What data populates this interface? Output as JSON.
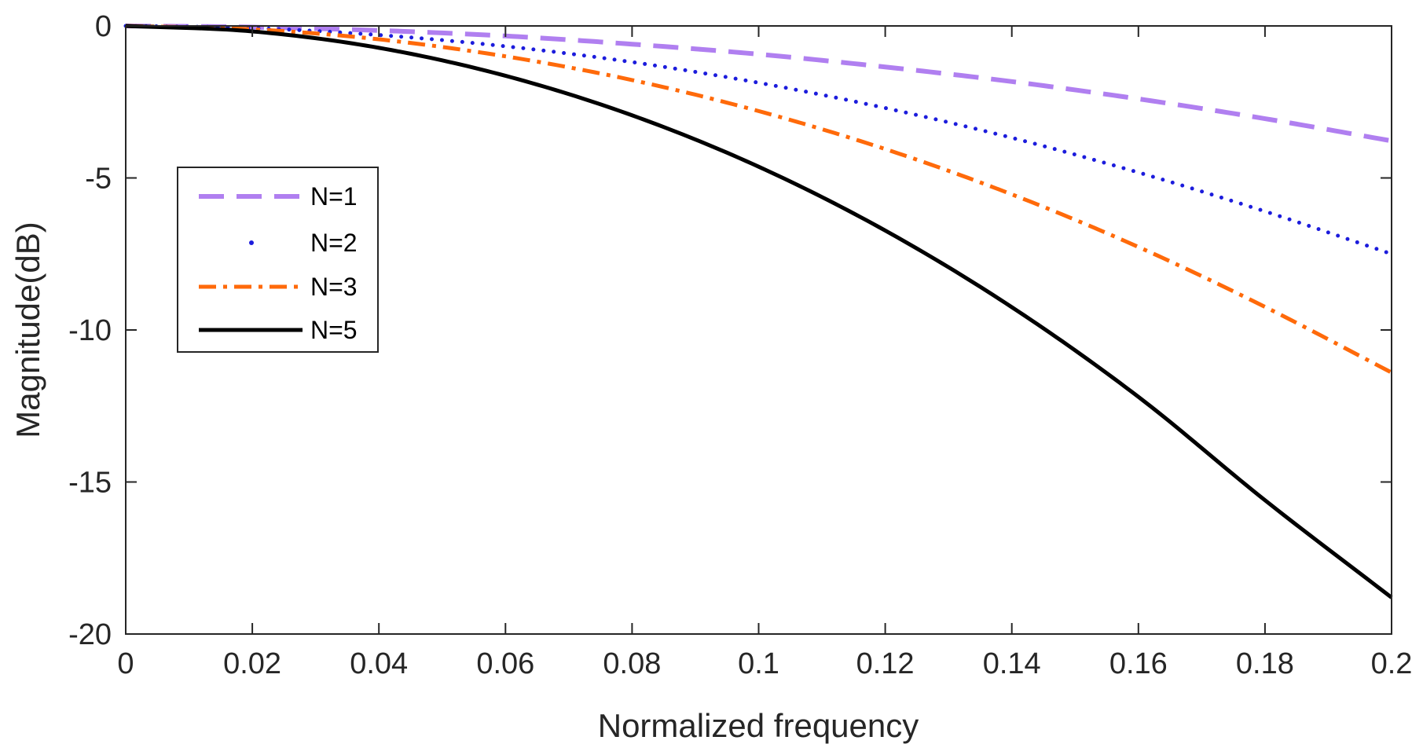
{
  "chart_data": {
    "type": "line",
    "title": "",
    "xlabel": "Normalized frequency",
    "ylabel": "Magnitude(dB)",
    "xlim": [
      0,
      0.2
    ],
    "ylim": [
      -20,
      0
    ],
    "grid": false,
    "legend_position": "middle-left",
    "x_ticks": [
      {
        "value": 0,
        "label": "0"
      },
      {
        "value": 0.02,
        "label": "0.02"
      },
      {
        "value": 0.04,
        "label": "0.04"
      },
      {
        "value": 0.06,
        "label": "0.06"
      },
      {
        "value": 0.08,
        "label": "0.08"
      },
      {
        "value": 0.1,
        "label": "0.1"
      },
      {
        "value": 0.12,
        "label": "0.12"
      },
      {
        "value": 0.14,
        "label": "0.14"
      },
      {
        "value": 0.16,
        "label": "0.16"
      },
      {
        "value": 0.18,
        "label": "0.18"
      },
      {
        "value": 0.2,
        "label": "0.2"
      }
    ],
    "y_ticks": [
      {
        "value": 0,
        "label": "0"
      },
      {
        "value": -5,
        "label": "-5"
      },
      {
        "value": -10,
        "label": "-10"
      },
      {
        "value": -15,
        "label": "-15"
      },
      {
        "value": -20,
        "label": "-20"
      }
    ],
    "x": [
      0,
      0.02,
      0.04,
      0.06,
      0.08,
      0.1,
      0.12,
      0.14,
      0.16,
      0.18,
      0.2
    ],
    "series": [
      {
        "name": "N=1",
        "color": "#b07ff0",
        "style": "dashed",
        "values": [
          0,
          -0.04,
          -0.15,
          -0.33,
          -0.6,
          -0.93,
          -1.35,
          -1.83,
          -2.4,
          -3.05,
          -3.78
        ]
      },
      {
        "name": "N=2",
        "color": "#1c1cdc",
        "style": "dotted",
        "values": [
          0,
          -0.07,
          -0.3,
          -0.67,
          -1.19,
          -1.87,
          -2.7,
          -3.68,
          -4.82,
          -6.1,
          -7.5
        ]
      },
      {
        "name": "N=3",
        "color": "#ff6a0a",
        "style": "dashdot",
        "values": [
          0,
          -0.11,
          -0.44,
          -1.0,
          -1.78,
          -2.8,
          -4.05,
          -5.54,
          -7.27,
          -9.24,
          -11.4
        ]
      },
      {
        "name": "N=5",
        "color": "#000000",
        "style": "solid",
        "values": [
          0,
          -0.18,
          -0.72,
          -1.64,
          -2.94,
          -4.63,
          -6.73,
          -9.25,
          -12.2,
          -15.6,
          -18.8
        ]
      }
    ]
  }
}
